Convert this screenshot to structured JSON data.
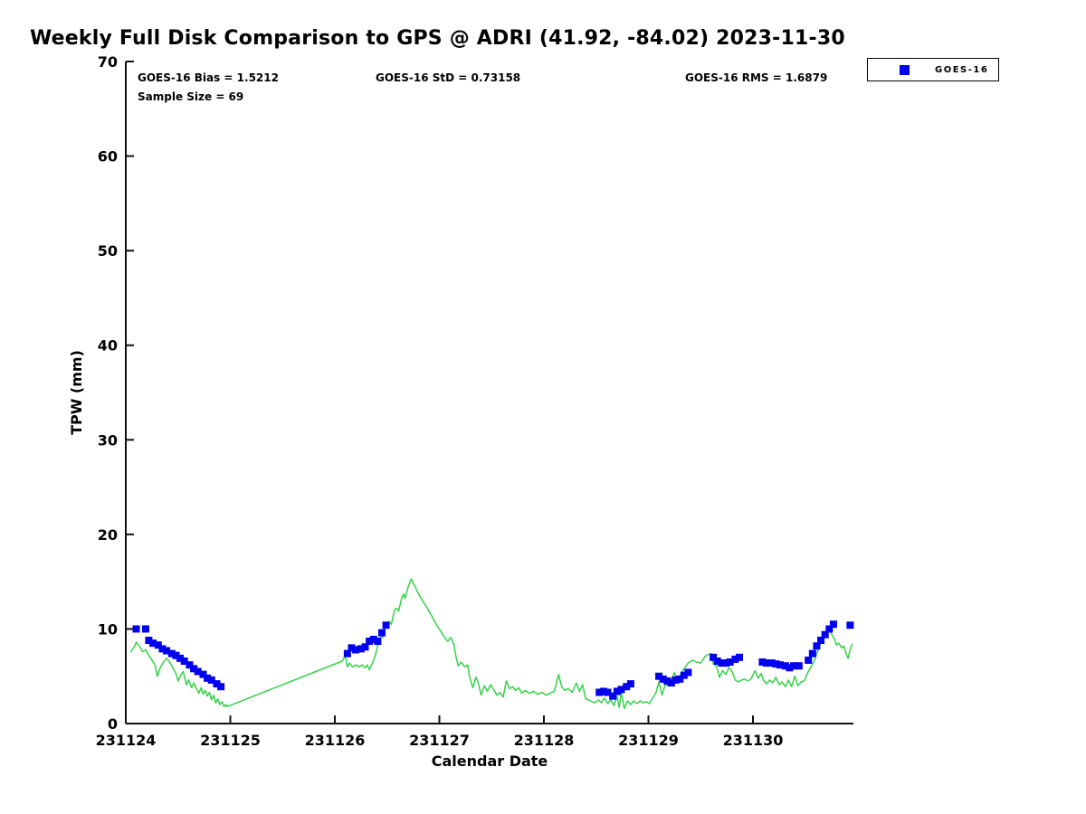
{
  "title": "Weekly Full Disk Comparison to GPS @ ADRI (41.92, -84.02) 2023-11-30",
  "annotations": {
    "bias": "GOES-16 Bias = 1.5212",
    "std": "GOES-16 StD = 0.73158",
    "rms": "GOES-16 RMS = 1.6879",
    "sample_size": "Sample Size = 69"
  },
  "legend": {
    "position": "top-right",
    "entries": [
      {
        "label": "GOES-16",
        "marker": "square",
        "color": "#0000ee"
      }
    ]
  },
  "colors": {
    "goes16_marker": "#0000ee",
    "gps_line": "#35d24a",
    "axis": "#111111",
    "background": "#ffffff"
  },
  "chart_data": {
    "type": "scatter",
    "title": "Weekly Full Disk Comparison to GPS @ ADRI (41.92, -84.02) 2023-11-30",
    "xlabel": "Calendar Date",
    "ylabel": "TPW (mm)",
    "ylim": [
      0,
      70
    ],
    "yticks": [
      "0",
      "10",
      "20",
      "30",
      "40",
      "50",
      "60",
      "70"
    ],
    "xtick_labels": [
      "231124",
      "231125",
      "231126",
      "231127",
      "231128",
      "231129",
      "231130"
    ],
    "x_unit": "days since 231124",
    "xlim_days": [
      0,
      6.96
    ],
    "grid": false,
    "legend_position": "top-right",
    "series": [
      {
        "name": "GOES-16",
        "style": "scatter-square",
        "color": "#0000ee",
        "points": [
          [
            0.1,
            10.0
          ],
          [
            0.19,
            10.0
          ],
          [
            0.22,
            8.8
          ],
          [
            0.26,
            8.5
          ],
          [
            0.31,
            8.3
          ],
          [
            0.35,
            7.9
          ],
          [
            0.39,
            7.7
          ],
          [
            0.44,
            7.4
          ],
          [
            0.48,
            7.2
          ],
          [
            0.52,
            6.9
          ],
          [
            0.56,
            6.6
          ],
          [
            0.61,
            6.2
          ],
          [
            0.65,
            5.8
          ],
          [
            0.69,
            5.5
          ],
          [
            0.74,
            5.2
          ],
          [
            0.78,
            4.8
          ],
          [
            0.82,
            4.6
          ],
          [
            0.87,
            4.2
          ],
          [
            0.91,
            3.9
          ],
          [
            2.12,
            7.4
          ],
          [
            2.16,
            8.0
          ],
          [
            2.2,
            7.8
          ],
          [
            2.25,
            7.9
          ],
          [
            2.29,
            8.1
          ],
          [
            2.33,
            8.7
          ],
          [
            2.37,
            8.9
          ],
          [
            2.41,
            8.7
          ],
          [
            2.45,
            9.6
          ],
          [
            2.49,
            10.4
          ],
          [
            4.53,
            3.3
          ],
          [
            4.57,
            3.4
          ],
          [
            4.61,
            3.3
          ],
          [
            4.66,
            2.9
          ],
          [
            4.7,
            3.4
          ],
          [
            4.74,
            3.6
          ],
          [
            4.79,
            3.9
          ],
          [
            4.83,
            4.2
          ],
          [
            5.1,
            5.0
          ],
          [
            5.14,
            4.7
          ],
          [
            5.18,
            4.5
          ],
          [
            5.22,
            4.3
          ],
          [
            5.26,
            4.6
          ],
          [
            5.3,
            4.7
          ],
          [
            5.34,
            5.1
          ],
          [
            5.38,
            5.4
          ],
          [
            5.62,
            7.0
          ],
          [
            5.66,
            6.6
          ],
          [
            5.7,
            6.4
          ],
          [
            5.74,
            6.4
          ],
          [
            5.78,
            6.5
          ],
          [
            5.83,
            6.8
          ],
          [
            5.87,
            7.0
          ],
          [
            6.09,
            6.5
          ],
          [
            6.13,
            6.4
          ],
          [
            6.18,
            6.4
          ],
          [
            6.22,
            6.3
          ],
          [
            6.26,
            6.2
          ],
          [
            6.31,
            6.1
          ],
          [
            6.35,
            5.9
          ],
          [
            6.39,
            6.1
          ],
          [
            6.44,
            6.1
          ],
          [
            6.53,
            6.7
          ],
          [
            6.57,
            7.4
          ],
          [
            6.61,
            8.2
          ],
          [
            6.65,
            8.8
          ],
          [
            6.69,
            9.4
          ],
          [
            6.73,
            10.0
          ],
          [
            6.77,
            10.5
          ],
          [
            6.93,
            10.4
          ]
        ]
      },
      {
        "name": "GPS",
        "style": "line",
        "color": "#35d24a",
        "points": [
          [
            0.05,
            7.6
          ],
          [
            0.08,
            8.1
          ],
          [
            0.1,
            8.6
          ],
          [
            0.13,
            8.2
          ],
          [
            0.16,
            7.6
          ],
          [
            0.19,
            7.8
          ],
          [
            0.22,
            7.2
          ],
          [
            0.25,
            6.7
          ],
          [
            0.28,
            6.2
          ],
          [
            0.3,
            5.0
          ],
          [
            0.33,
            5.9
          ],
          [
            0.36,
            6.5
          ],
          [
            0.39,
            6.9
          ],
          [
            0.42,
            6.5
          ],
          [
            0.45,
            5.9
          ],
          [
            0.48,
            5.3
          ],
          [
            0.5,
            4.5
          ],
          [
            0.53,
            5.2
          ],
          [
            0.55,
            5.5
          ],
          [
            0.58,
            4.1
          ],
          [
            0.6,
            4.6
          ],
          [
            0.63,
            3.8
          ],
          [
            0.65,
            4.3
          ],
          [
            0.68,
            3.6
          ],
          [
            0.7,
            3.2
          ],
          [
            0.72,
            3.8
          ],
          [
            0.74,
            3.1
          ],
          [
            0.76,
            3.5
          ],
          [
            0.78,
            2.9
          ],
          [
            0.8,
            3.3
          ],
          [
            0.82,
            2.5
          ],
          [
            0.84,
            3.0
          ],
          [
            0.86,
            2.2
          ],
          [
            0.88,
            2.6
          ],
          [
            0.9,
            2.0
          ],
          [
            0.92,
            2.3
          ],
          [
            0.94,
            1.8
          ],
          [
            0.96,
            2.0
          ],
          [
            0.97,
            1.8
          ],
          [
            2.07,
            6.6
          ],
          [
            2.1,
            7.2
          ],
          [
            2.12,
            6.0
          ],
          [
            2.14,
            6.4
          ],
          [
            2.17,
            6.0
          ],
          [
            2.2,
            6.2
          ],
          [
            2.23,
            6.0
          ],
          [
            2.26,
            6.2
          ],
          [
            2.29,
            5.9
          ],
          [
            2.31,
            6.2
          ],
          [
            2.33,
            5.7
          ],
          [
            2.36,
            6.4
          ],
          [
            2.39,
            7.3
          ],
          [
            2.41,
            8.3
          ],
          [
            2.43,
            8.8
          ],
          [
            2.45,
            9.4
          ],
          [
            2.46,
            9.1
          ],
          [
            2.49,
            10.4
          ],
          [
            2.52,
            10.8
          ],
          [
            2.54,
            10.5
          ],
          [
            2.57,
            12.0
          ],
          [
            2.59,
            12.2
          ],
          [
            2.61,
            11.9
          ],
          [
            2.64,
            13.3
          ],
          [
            2.66,
            13.7
          ],
          [
            2.67,
            13.2
          ],
          [
            2.7,
            14.4
          ],
          [
            2.73,
            15.3
          ],
          [
            2.77,
            14.4
          ],
          [
            2.81,
            13.5
          ],
          [
            2.85,
            12.8
          ],
          [
            2.89,
            12.1
          ],
          [
            2.93,
            11.3
          ],
          [
            2.97,
            10.5
          ],
          [
            3.01,
            9.8
          ],
          [
            3.05,
            9.1
          ],
          [
            3.08,
            8.7
          ],
          [
            3.11,
            9.1
          ],
          [
            3.14,
            8.3
          ],
          [
            3.16,
            7.0
          ],
          [
            3.18,
            6.1
          ],
          [
            3.21,
            6.5
          ],
          [
            3.24,
            6.0
          ],
          [
            3.27,
            6.2
          ],
          [
            3.29,
            4.9
          ],
          [
            3.32,
            3.8
          ],
          [
            3.35,
            4.9
          ],
          [
            3.37,
            4.4
          ],
          [
            3.4,
            3.0
          ],
          [
            3.43,
            4.0
          ],
          [
            3.46,
            3.4
          ],
          [
            3.49,
            4.1
          ],
          [
            3.52,
            3.6
          ],
          [
            3.55,
            3.0
          ],
          [
            3.58,
            3.3
          ],
          [
            3.61,
            2.8
          ],
          [
            3.64,
            4.5
          ],
          [
            3.67,
            3.7
          ],
          [
            3.7,
            3.9
          ],
          [
            3.73,
            3.5
          ],
          [
            3.76,
            3.8
          ],
          [
            3.79,
            3.2
          ],
          [
            3.82,
            3.5
          ],
          [
            3.86,
            3.2
          ],
          [
            3.9,
            3.4
          ],
          [
            3.94,
            3.1
          ],
          [
            3.98,
            3.3
          ],
          [
            4.02,
            3.0
          ],
          [
            4.06,
            3.2
          ],
          [
            4.1,
            3.4
          ],
          [
            4.14,
            5.2
          ],
          [
            4.17,
            3.9
          ],
          [
            4.2,
            3.5
          ],
          [
            4.23,
            3.7
          ],
          [
            4.27,
            3.3
          ],
          [
            4.31,
            4.3
          ],
          [
            4.34,
            3.4
          ],
          [
            4.37,
            4.1
          ],
          [
            4.4,
            2.6
          ],
          [
            4.43,
            2.5
          ],
          [
            4.46,
            2.3
          ],
          [
            4.49,
            2.2
          ],
          [
            4.52,
            2.5
          ],
          [
            4.55,
            2.2
          ],
          [
            4.58,
            2.7
          ],
          [
            4.61,
            2.1
          ],
          [
            4.64,
            2.5
          ],
          [
            4.67,
            1.9
          ],
          [
            4.7,
            2.9
          ],
          [
            4.72,
            1.7
          ],
          [
            4.74,
            3.3
          ],
          [
            4.77,
            1.6
          ],
          [
            4.8,
            2.4
          ],
          [
            4.83,
            2.0
          ],
          [
            4.86,
            2.4
          ],
          [
            4.89,
            2.1
          ],
          [
            4.92,
            2.4
          ],
          [
            4.95,
            2.2
          ],
          [
            4.98,
            2.3
          ],
          [
            5.01,
            2.1
          ],
          [
            5.04,
            2.7
          ],
          [
            5.07,
            3.2
          ],
          [
            5.1,
            4.4
          ],
          [
            5.13,
            3.0
          ],
          [
            5.16,
            4.1
          ],
          [
            5.19,
            4.0
          ],
          [
            5.22,
            4.7
          ],
          [
            5.25,
            5.4
          ],
          [
            5.27,
            4.6
          ],
          [
            5.3,
            5.0
          ],
          [
            5.34,
            5.8
          ],
          [
            5.38,
            6.4
          ],
          [
            5.42,
            6.7
          ],
          [
            5.46,
            6.5
          ],
          [
            5.5,
            6.4
          ],
          [
            5.54,
            7.1
          ],
          [
            5.57,
            7.3
          ],
          [
            5.6,
            7.4
          ],
          [
            5.62,
            6.3
          ],
          [
            5.65,
            6.1
          ],
          [
            5.68,
            4.9
          ],
          [
            5.71,
            5.6
          ],
          [
            5.74,
            5.2
          ],
          [
            5.77,
            5.9
          ],
          [
            5.8,
            5.5
          ],
          [
            5.83,
            4.6
          ],
          [
            5.86,
            4.4
          ],
          [
            5.89,
            4.6
          ],
          [
            5.92,
            4.7
          ],
          [
            5.95,
            4.5
          ],
          [
            5.98,
            4.7
          ],
          [
            6.02,
            5.6
          ],
          [
            6.05,
            4.8
          ],
          [
            6.08,
            5.3
          ],
          [
            6.1,
            4.6
          ],
          [
            6.13,
            4.2
          ],
          [
            6.16,
            4.6
          ],
          [
            6.19,
            4.3
          ],
          [
            6.22,
            4.9
          ],
          [
            6.25,
            4.1
          ],
          [
            6.28,
            4.4
          ],
          [
            6.31,
            3.9
          ],
          [
            6.34,
            4.6
          ],
          [
            6.37,
            3.9
          ],
          [
            6.4,
            5.0
          ],
          [
            6.43,
            4.0
          ],
          [
            6.46,
            4.4
          ],
          [
            6.49,
            4.5
          ],
          [
            6.52,
            5.3
          ],
          [
            6.56,
            6.1
          ],
          [
            6.59,
            6.7
          ],
          [
            6.62,
            7.7
          ],
          [
            6.65,
            8.6
          ],
          [
            6.68,
            9.3
          ],
          [
            6.71,
            9.9
          ],
          [
            6.73,
            10.0
          ],
          [
            6.76,
            9.3
          ],
          [
            6.78,
            8.9
          ],
          [
            6.8,
            8.3
          ],
          [
            6.82,
            8.5
          ],
          [
            6.85,
            8.0
          ],
          [
            6.87,
            8.2
          ],
          [
            6.89,
            7.4
          ],
          [
            6.91,
            6.9
          ],
          [
            6.93,
            7.9
          ],
          [
            6.95,
            8.4
          ]
        ]
      }
    ]
  }
}
